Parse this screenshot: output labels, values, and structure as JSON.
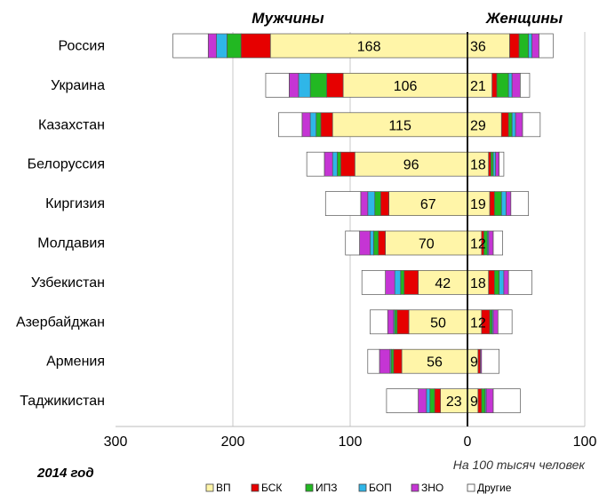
{
  "chart_data": {
    "type": "bar",
    "orientation": "horizontal-diverging",
    "panel_labels": {
      "left": "Мужчины",
      "right": "Женщины"
    },
    "year_label": "2014 год",
    "unit_label": "На 100 тысяч человек",
    "xlim": [
      -300,
      100
    ],
    "x_ticks": [
      {
        "value": -300,
        "label": "300"
      },
      {
        "value": -200,
        "label": "200"
      },
      {
        "value": -100,
        "label": "100"
      },
      {
        "value": 0,
        "label": "0"
      },
      {
        "value": 100,
        "label": "100"
      }
    ],
    "grid": "vertical",
    "legend_position": "bottom",
    "series": [
      {
        "name": "ВП",
        "color": "#fff5a8"
      },
      {
        "name": "БСК",
        "color": "#e60000"
      },
      {
        "name": "ИПЗ",
        "color": "#22b822"
      },
      {
        "name": "БОП",
        "color": "#2fb6e8"
      },
      {
        "name": "ЗНО",
        "color": "#c535d4"
      },
      {
        "name": "Другие",
        "color": "#ffffff"
      }
    ],
    "categories": [
      "Россия",
      "Украина",
      "Казахстан",
      "Белоруссия",
      "Киргизия",
      "Молдавия",
      "Узбекистан",
      "Азербайджан",
      "Армения",
      "Таджикистан"
    ],
    "men": [
      [
        168,
        25,
        12,
        9,
        7,
        30
      ],
      [
        106,
        14,
        14,
        10,
        8,
        20
      ],
      [
        115,
        10,
        4,
        5,
        7,
        20
      ],
      [
        96,
        12,
        3,
        4,
        7,
        15
      ],
      [
        67,
        7,
        5,
        6,
        6,
        30
      ],
      [
        70,
        6,
        4,
        3,
        9,
        12
      ],
      [
        42,
        12,
        3,
        5,
        8,
        20
      ],
      [
        50,
        10,
        2,
        1,
        5,
        15
      ],
      [
        56,
        7,
        2,
        1,
        9,
        10
      ],
      [
        23,
        5,
        4,
        3,
        7,
        27
      ]
    ],
    "women": [
      [
        36,
        8,
        8,
        3,
        6,
        12
      ],
      [
        21,
        4,
        10,
        3,
        7,
        8
      ],
      [
        29,
        6,
        3,
        3,
        6,
        15
      ],
      [
        18,
        2,
        2,
        2,
        3,
        4
      ],
      [
        19,
        4,
        6,
        4,
        4,
        15
      ],
      [
        12,
        2,
        3,
        1,
        4,
        8
      ],
      [
        18,
        5,
        4,
        4,
        4,
        20
      ],
      [
        12,
        7,
        2,
        1,
        4,
        12
      ],
      [
        9,
        2,
        0,
        0,
        1,
        15
      ],
      [
        9,
        3,
        3,
        1,
        6,
        23
      ]
    ],
    "data_labels": {
      "men": [
        "168",
        "106",
        "115",
        "96",
        "67",
        "70",
        "42",
        "50",
        "56",
        "23"
      ],
      "women": [
        "36",
        "21",
        "29",
        "18",
        "19",
        "12",
        "18",
        "12",
        "9",
        "9"
      ]
    }
  }
}
